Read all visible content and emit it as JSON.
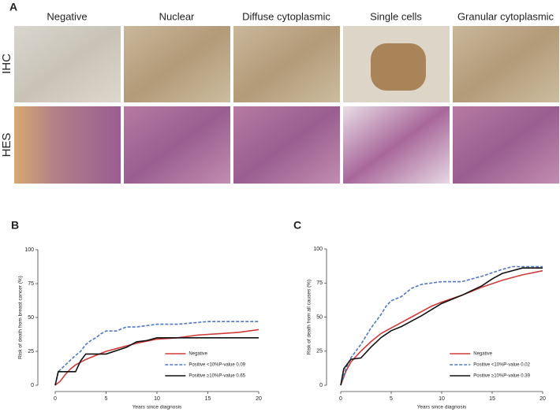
{
  "figure": {
    "panel_labels": [
      "A",
      "B",
      "C"
    ],
    "columns": [
      "Negative",
      "Nuclear",
      "Diffuse cytoplasmic",
      "Single cells",
      "Granular cytoplasmic"
    ],
    "rows": [
      "IHC",
      "HES"
    ]
  },
  "chart_data": [
    {
      "type": "line",
      "xlabel": "Years since diagnosis",
      "ylabel": "Risk of death from breast cancer (%)",
      "xlim": [
        0,
        20
      ],
      "ylim": [
        0,
        100
      ],
      "xticks": [
        0,
        5,
        10,
        15,
        20
      ],
      "yticks": [
        0,
        25,
        50,
        75,
        100
      ],
      "legend": "lower right",
      "series": [
        {
          "name": "Negative",
          "color": "#d03a3a",
          "linestyle": "solid",
          "x": [
            0,
            0.5,
            1,
            1.5,
            2,
            3,
            4,
            5,
            6,
            7,
            8,
            10,
            12,
            14,
            16,
            18,
            20
          ],
          "values": [
            0,
            3,
            8,
            12,
            15,
            19,
            22,
            25,
            27,
            29,
            31,
            34,
            35,
            37,
            38,
            39,
            41
          ]
        },
        {
          "name": "Positive <10%",
          "p_label": "P-value 0.09",
          "color": "#4f78c0",
          "linestyle": "dashed",
          "x": [
            0,
            0.3,
            1,
            2,
            2.5,
            3,
            3.5,
            4,
            4.5,
            5,
            6,
            7,
            8,
            10,
            12,
            15,
            20
          ],
          "values": [
            0,
            10,
            15,
            22,
            25,
            30,
            33,
            35,
            38,
            40,
            40,
            43,
            43,
            45,
            45,
            47,
            47
          ]
        },
        {
          "name": "Positive ≥10%",
          "p_label": "P-value 0.65",
          "color": "#111111",
          "linestyle": "solid",
          "x": [
            0,
            0.3,
            2,
            2.5,
            3,
            5,
            7,
            8,
            9,
            10,
            11,
            15,
            20
          ],
          "values": [
            0,
            10,
            10,
            18,
            23,
            23,
            28,
            32,
            33,
            35,
            35,
            35,
            35
          ]
        }
      ]
    },
    {
      "type": "line",
      "xlabel": "Years since diagnosis",
      "ylabel": "Risk of death from all causes (%)",
      "xlim": [
        0,
        20
      ],
      "ylim": [
        0,
        100
      ],
      "xticks": [
        0,
        5,
        10,
        15,
        20
      ],
      "yticks": [
        0,
        25,
        50,
        75,
        100
      ],
      "legend": "lower right",
      "series": [
        {
          "name": "Negative",
          "color": "#d03a3a",
          "linestyle": "solid",
          "x": [
            0,
            0.5,
            1,
            2,
            3,
            4,
            5,
            6,
            7,
            8,
            9,
            10,
            12,
            14,
            16,
            18,
            20
          ],
          "values": [
            0,
            10,
            17,
            25,
            32,
            38,
            42,
            46,
            50,
            54,
            58,
            61,
            66,
            72,
            77,
            81,
            84
          ]
        },
        {
          "name": "Positive <10%",
          "p_label": "P-value 0.02",
          "color": "#4f78c0",
          "linestyle": "dashed",
          "x": [
            0,
            0.5,
            1,
            2,
            3,
            4,
            4.5,
            5,
            6,
            7,
            8,
            10,
            12,
            14,
            16,
            17,
            20
          ],
          "values": [
            0,
            12,
            20,
            30,
            42,
            52,
            58,
            62,
            65,
            71,
            74,
            76,
            76,
            80,
            85,
            87,
            87
          ]
        },
        {
          "name": "Positive ≥10%",
          "p_label": "P-value 0.39",
          "color": "#111111",
          "linestyle": "solid",
          "x": [
            0,
            0.3,
            1,
            2,
            3,
            4,
            5,
            6,
            7,
            8,
            10,
            12,
            14,
            15,
            16,
            18,
            20
          ],
          "values": [
            0,
            12,
            19,
            20,
            28,
            35,
            40,
            43,
            47,
            51,
            60,
            66,
            73,
            78,
            82,
            86,
            86
          ]
        }
      ]
    }
  ]
}
